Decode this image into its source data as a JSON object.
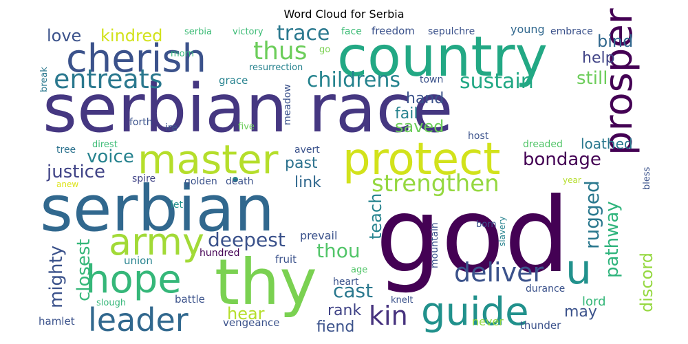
{
  "chart_data": {
    "type": "wordcloud",
    "title": "Word Cloud for Serbia",
    "colormap": "viridis",
    "words": [
      {
        "text": "serbian race",
        "color": "#453781"
      },
      {
        "text": "god",
        "color": "#440154"
      },
      {
        "text": "serbian",
        "color": "#31688e"
      },
      {
        "text": "country",
        "color": "#22a884"
      },
      {
        "text": "thy",
        "color": "#7ad151"
      },
      {
        "text": "protect",
        "color": "#d2e21b"
      },
      {
        "text": "master",
        "color": "#b5de2b"
      },
      {
        "text": "cherish",
        "color": "#3b528b"
      },
      {
        "text": "army",
        "color": "#a2da37"
      },
      {
        "text": "hope",
        "color": "#35b779"
      },
      {
        "text": "guide",
        "color": "#21918c"
      },
      {
        "text": "prosper",
        "color": "#440154"
      },
      {
        "text": "leader",
        "color": "#31688e"
      },
      {
        "text": "u",
        "color": "#21918c"
      },
      {
        "text": "entreats",
        "color": "#2a788e"
      },
      {
        "text": "strengthen",
        "color": "#95d840"
      },
      {
        "text": "deliver",
        "color": "#3b528b"
      },
      {
        "text": "thus",
        "color": "#6ccd5a"
      },
      {
        "text": "trace",
        "color": "#2a788e"
      },
      {
        "text": "childrens",
        "color": "#25838e"
      },
      {
        "text": "sustain",
        "color": "#22a884"
      },
      {
        "text": "kin",
        "color": "#46327e"
      },
      {
        "text": "bondage",
        "color": "#440154"
      },
      {
        "text": "justice",
        "color": "#414487"
      },
      {
        "text": "voice",
        "color": "#26828e"
      },
      {
        "text": "master dot",
        "color": "#26828e"
      },
      {
        "text": "rugged",
        "color": "#2a788e"
      },
      {
        "text": "pathway",
        "color": "#2fb47c"
      },
      {
        "text": "deepest",
        "color": "#3b528b"
      },
      {
        "text": "thou",
        "color": "#52c569"
      },
      {
        "text": "mighty",
        "color": "#3b528b"
      },
      {
        "text": "closest",
        "color": "#35b779"
      },
      {
        "text": "teach",
        "color": "#25838e"
      },
      {
        "text": "cast",
        "color": "#2a788e"
      },
      {
        "text": "discord",
        "color": "#95d840"
      },
      {
        "text": "love",
        "color": "#3b528b"
      },
      {
        "text": "kindred",
        "color": "#d2e21b"
      },
      {
        "text": "bind",
        "color": "#31688e"
      },
      {
        "text": "help",
        "color": "#414487"
      },
      {
        "text": "still",
        "color": "#6ccd5a"
      },
      {
        "text": "hand",
        "color": "#3b528b"
      },
      {
        "text": "fail",
        "color": "#26828e"
      },
      {
        "text": "saved",
        "color": "#6ccd5a"
      },
      {
        "text": "past",
        "color": "#2c728e"
      },
      {
        "text": "link",
        "color": "#31688e"
      },
      {
        "text": "loathed",
        "color": "#2a788e"
      },
      {
        "text": "hear",
        "color": "#b5de2b"
      },
      {
        "text": "rank",
        "color": "#414487"
      },
      {
        "text": "fiend",
        "color": "#3b528b"
      },
      {
        "text": "may",
        "color": "#3b528b"
      },
      {
        "text": "never",
        "color": "#95d840"
      },
      {
        "text": "lord",
        "color": "#35b779"
      },
      {
        "text": "serbia",
        "color": "#3bbb75"
      },
      {
        "text": "victory",
        "color": "#3bbb75"
      },
      {
        "text": "face",
        "color": "#3bbb75"
      },
      {
        "text": "freedom",
        "color": "#3b528b"
      },
      {
        "text": "sepulchre",
        "color": "#3b528b"
      },
      {
        "text": "young",
        "color": "#31688e"
      },
      {
        "text": "embrace",
        "color": "#3b528b"
      },
      {
        "text": "morn",
        "color": "#35b779"
      },
      {
        "text": "go",
        "color": "#7ad151"
      },
      {
        "text": "resurrection",
        "color": "#26828e"
      },
      {
        "text": "break",
        "color": "#2a788e"
      },
      {
        "text": "grace",
        "color": "#26828e"
      },
      {
        "text": "meadow",
        "color": "#3b528b"
      },
      {
        "text": "town",
        "color": "#3b528b"
      },
      {
        "text": "forth",
        "color": "#3b528b"
      },
      {
        "text": "ire",
        "color": "#3b528b"
      },
      {
        "text": "five",
        "color": "#6ccd5a"
      },
      {
        "text": "host",
        "color": "#3b528b"
      },
      {
        "text": "tree",
        "color": "#2c728e"
      },
      {
        "text": "direst",
        "color": "#3bbb75"
      },
      {
        "text": "avert",
        "color": "#3b528b"
      },
      {
        "text": "dreaded",
        "color": "#52c569"
      },
      {
        "text": "anew",
        "color": "#dde318"
      },
      {
        "text": "spire",
        "color": "#414487"
      },
      {
        "text": "golden",
        "color": "#3b528b"
      },
      {
        "text": "death",
        "color": "#3b528b"
      },
      {
        "text": "bless",
        "color": "#3b528b"
      },
      {
        "text": "year",
        "color": "#b5de2b"
      },
      {
        "text": "let",
        "color": "#21918c"
      },
      {
        "text": "prevail",
        "color": "#3b528b"
      },
      {
        "text": "mountain",
        "color": "#3b528b"
      },
      {
        "text": "born",
        "color": "#3b528b"
      },
      {
        "text": "slavery",
        "color": "#26828e"
      },
      {
        "text": "union",
        "color": "#26828e"
      },
      {
        "text": "hundred",
        "color": "#440154"
      },
      {
        "text": "fruit",
        "color": "#3b528b"
      },
      {
        "text": "age",
        "color": "#52c569"
      },
      {
        "text": "heart",
        "color": "#3b528b"
      },
      {
        "text": "durance",
        "color": "#3b528b"
      },
      {
        "text": "battle",
        "color": "#3b528b"
      },
      {
        "text": "knelt",
        "color": "#3b528b"
      },
      {
        "text": "slough",
        "color": "#35b779"
      },
      {
        "text": "hamlet",
        "color": "#3b528b"
      },
      {
        "text": "vengeance",
        "color": "#3b528b"
      },
      {
        "text": "thunder",
        "color": "#3b528b"
      }
    ]
  }
}
